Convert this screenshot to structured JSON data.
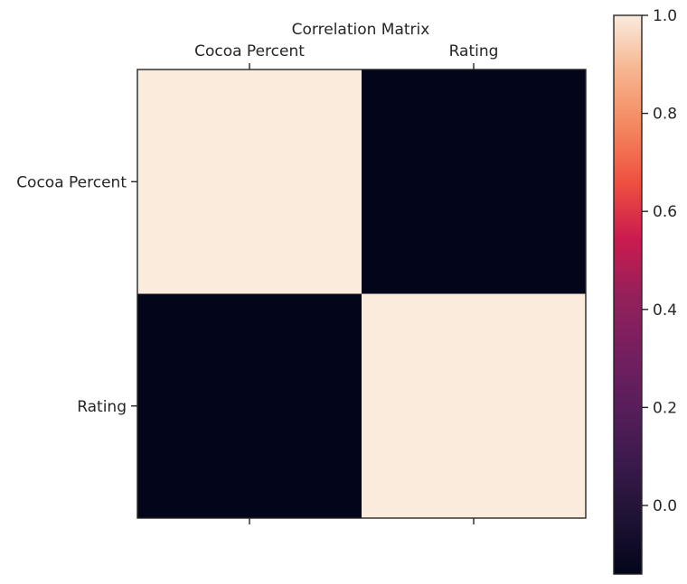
{
  "chart_data": {
    "type": "heatmap",
    "title": "Correlation Matrix",
    "categories": [
      "Cocoa Percent",
      "Rating"
    ],
    "matrix": [
      [
        1.0,
        -0.14
      ],
      [
        -0.14,
        1.0
      ]
    ],
    "colorbar": {
      "min": -0.14,
      "max": 1.0,
      "ticks": [
        0.0,
        0.2,
        0.4,
        0.6,
        0.8,
        1.0
      ],
      "tick_labels": [
        "0.0",
        "0.2",
        "0.4",
        "0.6",
        "0.8",
        "1.0"
      ],
      "colormap": "rocket"
    },
    "x_tick_position": "top",
    "grid": false
  }
}
